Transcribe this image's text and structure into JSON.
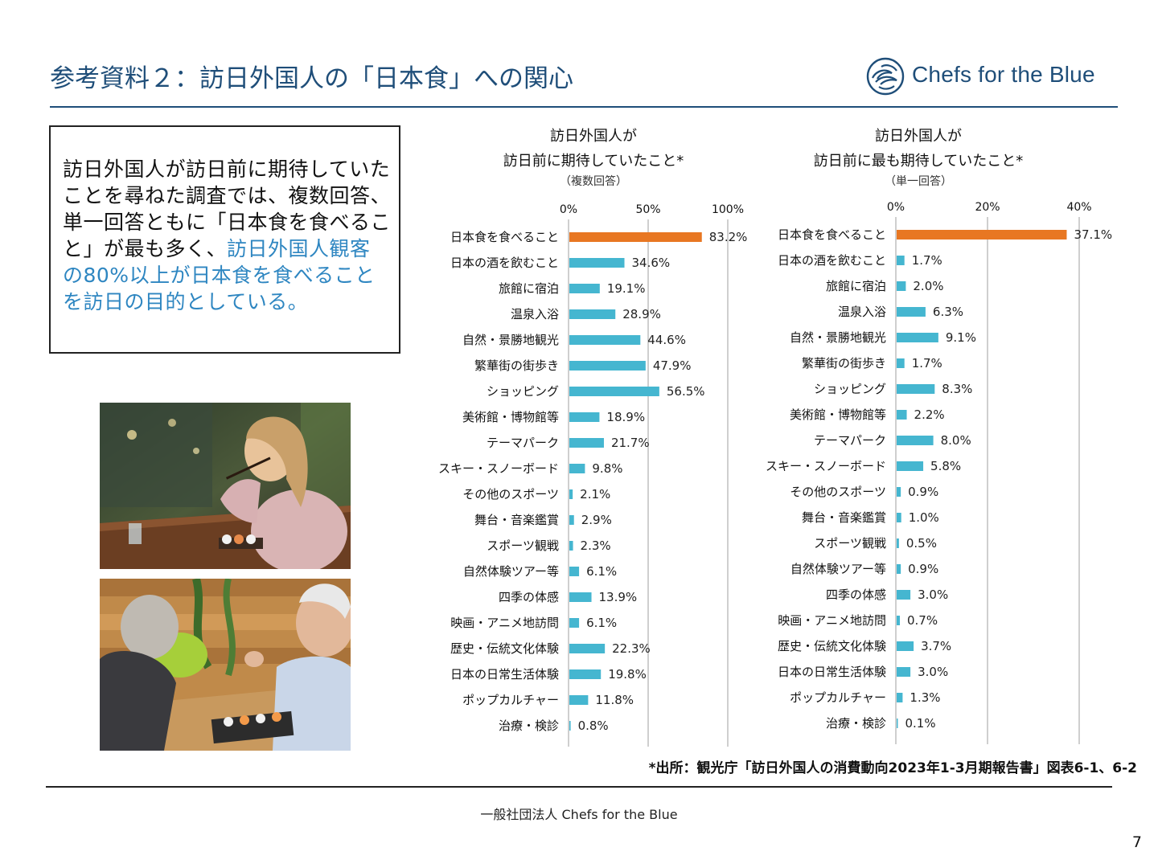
{
  "slide": {
    "title": "参考資料２：訪日外国人の「日本食」への関心",
    "logo_text": "Chefs for the Blue",
    "note_plain": "訪日外国人が訪日前に期待していたことを尋ねた調査では、複数回答、単一回答ともに「日本食を食べること」が最も多く、",
    "note_highlight": "訪日外国人観客の80%以上が日本食を食べることを訪日の目的としている。",
    "source": "*出所：観光庁「訪日外国人の消費動向2023年1-3月期報告書」図表6-1、6-2",
    "footer": "一般社団法人 Chefs for the Blue",
    "page_number": "7",
    "colors": {
      "brand": "#1f4e79",
      "highlight": "#2e86c1",
      "bar_top": "#e87722",
      "bar": "#45b6d0"
    }
  },
  "chart_data": [
    {
      "type": "bar",
      "orientation": "horizontal",
      "title_lines": [
        "訪日外国人が",
        "訪日前に期待していたこと*"
      ],
      "subtitle": "（複数回答）",
      "categories": [
        "日本食を食べること",
        "日本の酒を飲むこと",
        "旅館に宿泊",
        "温泉入浴",
        "自然・景勝地観光",
        "繁華街の街歩き",
        "ショッピング",
        "美術館・博物館等",
        "テーマパーク",
        "スキー・スノーボード",
        "その他のスポーツ",
        "舞台・音楽鑑賞",
        "スポーツ観戦",
        "自然体験ツアー等",
        "四季の体感",
        "映画・アニメ地訪問",
        "歴史・伝統文化体験",
        "日本の日常生活体験",
        "ポップカルチャー",
        "治療・検診"
      ],
      "values": [
        83.2,
        34.6,
        19.1,
        28.9,
        44.6,
        47.9,
        56.5,
        18.9,
        21.7,
        9.8,
        2.1,
        2.9,
        2.3,
        6.1,
        13.9,
        6.1,
        22.3,
        19.8,
        11.8,
        0.8
      ],
      "value_labels": [
        "83.2%",
        "34.6%",
        "19.1%",
        "28.9%",
        "44.6%",
        "47.9%",
        "56.5%",
        "18.9%",
        "21.7%",
        "9.8%",
        "2.1%",
        "2.9%",
        "2.3%",
        "6.1%",
        "13.9%",
        "6.1%",
        "22.3%",
        "19.8%",
        "11.8%",
        "0.8%"
      ],
      "ticks": [
        0,
        50,
        100
      ],
      "tick_labels": [
        "0%",
        "50%",
        "100%"
      ],
      "xlim": [
        0,
        100
      ],
      "grid": true,
      "legend": false
    },
    {
      "type": "bar",
      "orientation": "horizontal",
      "title_lines": [
        "訪日外国人が",
        "訪日前に最も期待していたこと*"
      ],
      "subtitle": "（単一回答）",
      "categories": [
        "日本食を食べること",
        "日本の酒を飲むこと",
        "旅館に宿泊",
        "温泉入浴",
        "自然・景勝地観光",
        "繁華街の街歩き",
        "ショッピング",
        "美術館・博物館等",
        "テーマパーク",
        "スキー・スノーボード",
        "その他のスポーツ",
        "舞台・音楽鑑賞",
        "スポーツ観戦",
        "自然体験ツアー等",
        "四季の体感",
        "映画・アニメ地訪問",
        "歴史・伝統文化体験",
        "日本の日常生活体験",
        "ポップカルチャー",
        "治療・検診"
      ],
      "values": [
        37.1,
        1.7,
        2.0,
        6.3,
        9.1,
        1.7,
        8.3,
        2.2,
        8.0,
        5.8,
        0.9,
        1.0,
        0.5,
        0.9,
        3.0,
        0.7,
        3.7,
        3.0,
        1.3,
        0.1
      ],
      "value_labels": [
        "37.1%",
        "1.7%",
        "2.0%",
        "6.3%",
        "9.1%",
        "1.7%",
        "8.3%",
        "2.2%",
        "8.0%",
        "5.8%",
        "0.9%",
        "1.0%",
        "0.5%",
        "0.9%",
        "3.0%",
        "0.7%",
        "3.7%",
        "3.0%",
        "1.3%",
        "0.1%"
      ],
      "ticks": [
        0,
        20,
        40
      ],
      "tick_labels": [
        "0%",
        "20%",
        "40%"
      ],
      "xlim": [
        0,
        40
      ],
      "grid": true,
      "legend": false
    }
  ]
}
